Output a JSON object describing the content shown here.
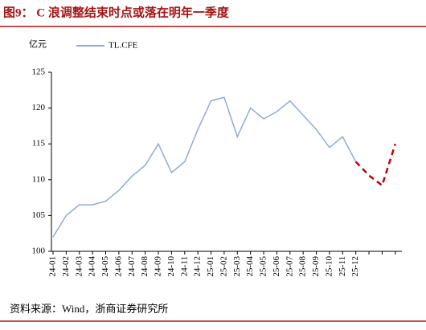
{
  "chart_data": {
    "type": "line",
    "title": "图9： C 浪调整结束时点或落在明年一季度",
    "y_label": "亿元",
    "source": "资料来源：Wind，浙商证券研究所",
    "categories": [
      "24-01",
      "24-02",
      "24-03",
      "24-04",
      "24-05",
      "24-06",
      "24-07",
      "24-08",
      "24-09",
      "24-10",
      "24-11",
      "24-12",
      "25-01",
      "25-02",
      "25-03",
      "25-04",
      "25-05",
      "25-06",
      "25-07",
      "25-08",
      "25-09",
      "25-10",
      "25-11",
      "25-12",
      null,
      null,
      null
    ],
    "series": [
      {
        "name": "TL.CFE",
        "color": "#8faadc",
        "values": [
          102,
          105,
          106.5,
          106.5,
          107,
          108.5,
          110.5,
          112,
          115,
          111,
          112.5,
          117,
          121,
          121.5,
          116,
          120,
          118.5,
          119.5,
          121,
          119,
          117,
          114.5,
          116,
          112.5,
          null,
          null,
          null
        ]
      },
      {
        "color": "#c00000",
        "dashed": true,
        "values": [
          null,
          null,
          null,
          null,
          null,
          null,
          null,
          null,
          null,
          null,
          null,
          null,
          null,
          null,
          null,
          null,
          null,
          null,
          null,
          null,
          null,
          null,
          null,
          112.5,
          110.6,
          109.2,
          115
        ]
      }
    ],
    "ylim": [
      100,
      125
    ],
    "yticks": [
      100,
      105,
      110,
      115,
      120,
      125
    ]
  }
}
